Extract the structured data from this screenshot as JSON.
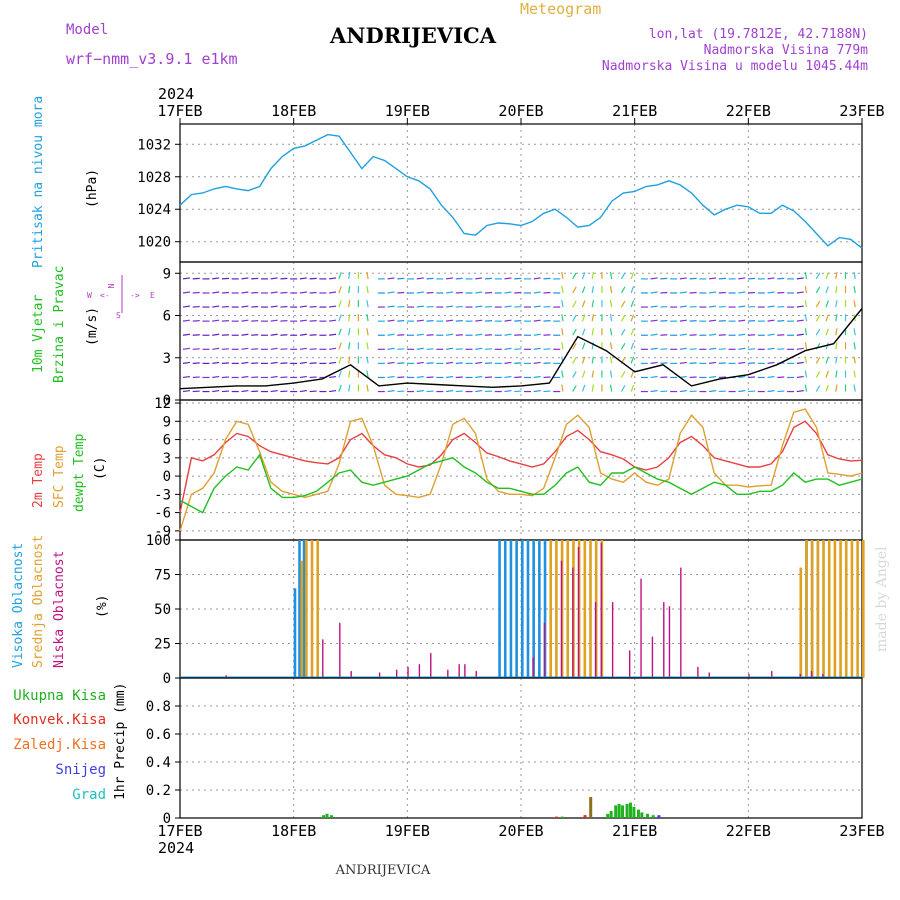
{
  "header": {
    "model_label": "Model",
    "model_name": "wrf−nmm_v3.9.1  e1km",
    "title": "ANDRIJEVICA",
    "meteogram_label": "Meteogram",
    "lonlat": "lon,lat (19.7812E, 42.7188N)",
    "altitude": "Nadmorska Visina 779m",
    "model_altitude": "Nadmorska Visina u modelu 1045.44m",
    "footer_title": "ANDRIJEVICA",
    "credit": "made by Angel"
  },
  "colors": {
    "pressure": "#1fa0e0",
    "temp2m": "#e84040",
    "sfc": "#e0a030",
    "dewpt": "#20c020",
    "high_cloud": "#2090e0",
    "mid_cloud": "#e0a020",
    "low_cloud": "#c01080",
    "total_precip": "#20b020",
    "conv_precip": "#e03020",
    "frozen_precip": "#f07020",
    "snow": "#4040e0",
    "grad": "#20c0c0",
    "title_purple": "#a040d0",
    "meteogram_label": "#e0b040"
  },
  "chart_data": [
    {
      "type": "line",
      "panel": "pressure",
      "title": "Pritisak na nivou mora",
      "ylabel": "(hPa)",
      "ylim": [
        1017.5,
        1034.5
      ],
      "yticks": [
        1020,
        1024,
        1028,
        1032
      ],
      "xlim": [
        0,
        6
      ],
      "xticks_top": [
        "17FEB",
        "18FEB",
        "19FEB",
        "20FEB",
        "21FEB",
        "22FEB",
        "23FEB"
      ],
      "year_label": "2024",
      "x": [
        0,
        0.1,
        0.2,
        0.3,
        0.4,
        0.5,
        0.6,
        0.7,
        0.8,
        0.9,
        1.0,
        1.1,
        1.2,
        1.3,
        1.4,
        1.5,
        1.6,
        1.7,
        1.8,
        1.9,
        2.0,
        2.1,
        2.2,
        2.3,
        2.4,
        2.5,
        2.6,
        2.7,
        2.8,
        2.9,
        3.0,
        3.1,
        3.2,
        3.3,
        3.4,
        3.5,
        3.6,
        3.7,
        3.8,
        3.9,
        4.0,
        4.1,
        4.2,
        4.3,
        4.4,
        4.5,
        4.6,
        4.7,
        4.8,
        4.9,
        5.0,
        5.1,
        5.2,
        5.3,
        5.4,
        5.5,
        5.6,
        5.7,
        5.8,
        5.9,
        6.0
      ],
      "values": [
        1024.5,
        1025.8,
        1026.0,
        1026.5,
        1026.8,
        1026.5,
        1026.3,
        1026.8,
        1029.0,
        1030.5,
        1031.5,
        1031.8,
        1032.5,
        1033.2,
        1033.0,
        1031.0,
        1029.0,
        1030.5,
        1030.0,
        1029.0,
        1028.0,
        1027.5,
        1026.5,
        1024.5,
        1023.0,
        1021.0,
        1020.8,
        1022.0,
        1022.3,
        1022.2,
        1022.0,
        1022.5,
        1023.5,
        1024.0,
        1023.0,
        1021.8,
        1022.0,
        1023.0,
        1025.0,
        1026.0,
        1026.2,
        1026.8,
        1027.0,
        1027.5,
        1027.0,
        1026.0,
        1024.5,
        1023.3,
        1024.0,
        1024.5,
        1024.3,
        1023.5,
        1023.5,
        1024.5,
        1023.8,
        1022.5,
        1021.0,
        1019.5,
        1020.5,
        1020.3,
        1019.2
      ]
    },
    {
      "type": "scatter",
      "panel": "wind",
      "title": "10m Vjetar Brzina i Pravac",
      "ylabel": "(m/s)",
      "ylim": [
        0,
        9.8
      ],
      "yticks": [
        0,
        3,
        6,
        9
      ],
      "compass": "N Z E W",
      "x": [
        0,
        0.25,
        0.5,
        0.75,
        1.0,
        1.25,
        1.5,
        1.75,
        2.0,
        2.25,
        2.5,
        2.75,
        3.0,
        3.25,
        3.5,
        3.75,
        4.0,
        4.25,
        4.5,
        4.75,
        5.0,
        5.25,
        5.5,
        5.75,
        6.0
      ],
      "values": [
        0.8,
        0.9,
        1.0,
        1.0,
        1.2,
        1.5,
        2.5,
        1.0,
        1.2,
        1.1,
        1.0,
        0.9,
        1.0,
        1.2,
        4.5,
        3.5,
        2.0,
        2.5,
        1.0,
        1.5,
        1.8,
        2.5,
        3.5,
        4.0,
        6.5
      ]
    },
    {
      "type": "line",
      "panel": "temperature",
      "ylabel": "(C)",
      "ylim": [
        -10.5,
        12.5
      ],
      "yticks": [
        -9,
        -6,
        -3,
        0,
        3,
        6,
        9,
        12
      ],
      "x": [
        0,
        0.1,
        0.2,
        0.3,
        0.4,
        0.5,
        0.6,
        0.7,
        0.8,
        0.9,
        1.0,
        1.1,
        1.2,
        1.3,
        1.4,
        1.5,
        1.6,
        1.7,
        1.8,
        1.9,
        2.0,
        2.1,
        2.2,
        2.3,
        2.4,
        2.5,
        2.6,
        2.7,
        2.8,
        2.9,
        3.0,
        3.1,
        3.2,
        3.3,
        3.4,
        3.5,
        3.6,
        3.7,
        3.8,
        3.9,
        4.0,
        4.1,
        4.2,
        4.3,
        4.4,
        4.5,
        4.6,
        4.7,
        4.8,
        4.9,
        5.0,
        5.1,
        5.2,
        5.3,
        5.4,
        5.5,
        5.6,
        5.7,
        5.8,
        5.9,
        6.0
      ],
      "series": [
        {
          "name": "2m Temp",
          "color_key": "temp2m",
          "values": [
            -6,
            3.0,
            2.5,
            3.5,
            5.5,
            7.0,
            6.5,
            5.0,
            4.0,
            3.5,
            3.0,
            2.5,
            2.2,
            2.0,
            3.0,
            6.0,
            7.0,
            5.0,
            3.5,
            3.0,
            2.0,
            1.5,
            1.8,
            3.5,
            6.0,
            7.0,
            5.5,
            3.8,
            3.2,
            2.5,
            2.0,
            1.5,
            2.0,
            4.0,
            6.5,
            7.5,
            6.0,
            4.0,
            3.5,
            2.8,
            1.5,
            1.0,
            1.5,
            3.0,
            5.5,
            6.5,
            5.0,
            3.0,
            2.5,
            2.0,
            1.5,
            1.5,
            2.0,
            4.0,
            8.0,
            9.0,
            7.0,
            3.5,
            2.8,
            2.5,
            2.6
          ]
        },
        {
          "name": "SFC Temp",
          "color_key": "sfc",
          "values": [
            -9,
            -3.0,
            -2.0,
            0.5,
            6.0,
            9.0,
            8.5,
            4.0,
            -1.0,
            -2.5,
            -3.0,
            -3.5,
            -3.0,
            -2.5,
            2.0,
            9.0,
            9.5,
            5.0,
            -1.5,
            -3.0,
            -3.2,
            -3.5,
            -3.0,
            2.0,
            8.5,
            9.5,
            7.0,
            -0.5,
            -2.5,
            -3.0,
            -3.0,
            -3.2,
            -2.0,
            3.0,
            8.5,
            10.0,
            8.0,
            0.5,
            -0.5,
            -1.0,
            0.5,
            -1.0,
            -1.5,
            -0.5,
            7.0,
            10.0,
            8.0,
            0.5,
            -1.5,
            -1.5,
            -1.8,
            -1.6,
            -1.5,
            5.0,
            10.5,
            11.0,
            8.0,
            0.5,
            0.3,
            0.0,
            0.5
          ]
        },
        {
          "name": "dewpt Temp",
          "color_key": "dewpt",
          "values": [
            -4.0,
            -5.0,
            -6.0,
            -2.0,
            0.0,
            1.5,
            1.0,
            3.5,
            -2.0,
            -3.5,
            -3.5,
            -3.2,
            -2.5,
            -1.0,
            0.5,
            1.0,
            -1.0,
            -1.5,
            -1.0,
            -0.5,
            0.0,
            1.0,
            2.0,
            2.5,
            3.0,
            1.5,
            0.5,
            -1.0,
            -2.0,
            -2.0,
            -2.5,
            -3.0,
            -3.0,
            -1.5,
            0.5,
            1.5,
            -1.0,
            -1.5,
            0.5,
            0.5,
            1.5,
            0.5,
            -0.5,
            -1.0,
            -2.0,
            -3.0,
            -2.0,
            -1.0,
            -1.5,
            -3.0,
            -3.0,
            -2.5,
            -2.5,
            -1.5,
            0.5,
            -1.0,
            -0.5,
            -0.5,
            -1.5,
            -1.0,
            -0.5
          ]
        }
      ]
    },
    {
      "type": "bar",
      "panel": "clouds",
      "ylabel": "(%)",
      "ylim": [
        0,
        100
      ],
      "yticks": [
        0,
        25,
        50,
        75,
        100
      ],
      "series": [
        {
          "name": "Visoka Oblacnost",
          "color_key": "high_cloud",
          "x": [
            1.0,
            1.04,
            1.08,
            2.8,
            2.85,
            2.9,
            2.95,
            3.0,
            3.05,
            3.1,
            3.15,
            3.2,
            5.45,
            5.5,
            5.55,
            5.6
          ],
          "values": [
            65,
            100,
            100,
            100,
            100,
            100,
            100,
            100,
            100,
            100,
            100,
            100,
            45,
            100,
            100,
            100
          ]
        },
        {
          "name": "Srednja Oblacnost",
          "color_key": "mid_cloud",
          "x": [
            1.06,
            1.1,
            1.15,
            1.2,
            3.25,
            3.3,
            3.35,
            3.4,
            3.45,
            3.5,
            3.55,
            3.6,
            3.65,
            3.7,
            5.45,
            5.5,
            5.55,
            5.6,
            5.65,
            5.7,
            5.75,
            5.8,
            5.85,
            5.9,
            5.95,
            6.0
          ],
          "values": [
            85,
            100,
            100,
            100,
            100,
            100,
            100,
            100,
            100,
            100,
            100,
            100,
            100,
            100,
            80,
            100,
            100,
            100,
            100,
            100,
            100,
            100,
            100,
            100,
            100,
            100
          ]
        },
        {
          "name": "Niska Oblacnost",
          "color_key": "low_cloud",
          "x": [
            0.4,
            1.25,
            1.4,
            1.5,
            1.75,
            1.9,
            2.0,
            2.1,
            2.2,
            2.35,
            2.45,
            2.5,
            2.6,
            3.1,
            3.2,
            3.35,
            3.45,
            3.5,
            3.65,
            3.7,
            3.8,
            3.95,
            4.05,
            4.15,
            4.25,
            4.3,
            4.4,
            4.55,
            4.65,
            5.0,
            5.2,
            5.45,
            5.55,
            5.65
          ],
          "values": [
            2,
            28,
            40,
            5,
            4,
            6,
            8,
            10,
            18,
            6,
            10,
            10,
            5,
            15,
            40,
            85,
            80,
            95,
            55,
            98,
            55,
            20,
            72,
            30,
            55,
            52,
            80,
            8,
            4,
            3,
            5,
            3,
            5,
            3
          ],
          "widths_thin": true
        }
      ]
    },
    {
      "type": "bar",
      "panel": "precipitation",
      "ylabel": "1hr Precip (mm)",
      "ylim": [
        0,
        1.0
      ],
      "yticks": [
        0,
        0.2,
        0.4,
        0.6,
        0.8
      ],
      "xticks_bottom": [
        "17FEB",
        "18FEB",
        "19FEB",
        "20FEB",
        "21FEB",
        "22FEB",
        "23FEB"
      ],
      "year_label": "2024",
      "series": [
        {
          "name": "Ukupna Kisa",
          "color_key": "total_precip",
          "x": [
            1.25,
            1.28,
            1.32,
            3.35,
            3.55,
            3.75,
            3.78,
            3.82,
            3.85,
            3.88,
            3.92,
            3.95,
            3.98,
            4.02,
            4.05,
            4.1,
            4.15,
            4.2
          ],
          "values": [
            0.02,
            0.03,
            0.02,
            0.01,
            0.02,
            0.03,
            0.05,
            0.09,
            0.1,
            0.09,
            0.1,
            0.11,
            0.08,
            0.06,
            0.04,
            0.03,
            0.02,
            0.01
          ]
        },
        {
          "name": "Konvek.Kisa",
          "color_key": "conv_precip",
          "x": [
            3.3,
            3.55
          ],
          "values": [
            0.01,
            0.02
          ]
        },
        {
          "name": "Zaledj.Kisa",
          "color_key": "frozen_precip",
          "x": [
            3.6
          ],
          "values": [
            0.15
          ]
        },
        {
          "name": "Snijeg",
          "color_key": "snow",
          "x": [
            4.2
          ],
          "values": [
            0.02
          ]
        },
        {
          "name": "Grad",
          "color_key": "grad",
          "x": [],
          "values": []
        }
      ]
    }
  ]
}
